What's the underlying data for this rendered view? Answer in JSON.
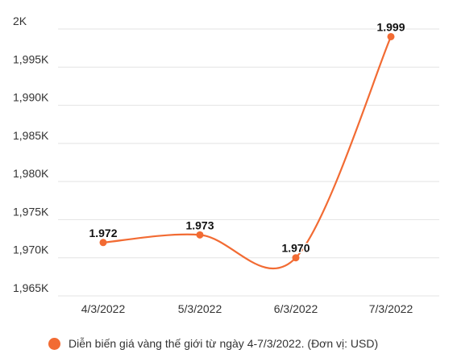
{
  "chart_data": {
    "type": "line",
    "categories": [
      "4/3/2022",
      "5/3/2022",
      "6/3/2022",
      "7/3/2022"
    ],
    "series": [
      {
        "name": "Diễn biến giá vàng thế giới từ ngày 4-7/3/2022. (Đơn vị: USD)",
        "values": [
          1972,
          1973,
          1970,
          1999
        ],
        "data_labels": [
          "1.972",
          "1.973",
          "1.970",
          "1.999"
        ],
        "color": "#f26b33"
      }
    ],
    "y_ticks": [
      {
        "value": 1965,
        "label": "1,965K"
      },
      {
        "value": 1970,
        "label": "1,970K"
      },
      {
        "value": 1975,
        "label": "1,975K"
      },
      {
        "value": 1980,
        "label": "1,980K"
      },
      {
        "value": 1985,
        "label": "1,985K"
      },
      {
        "value": 1990,
        "label": "1,990K"
      },
      {
        "value": 1995,
        "label": "1,995K"
      },
      {
        "value": 2000,
        "label": "2K"
      }
    ],
    "ylim": [
      1965,
      2000
    ],
    "grid": true,
    "legend_position": "bottom",
    "title": "",
    "xlabel": "",
    "ylabel": ""
  }
}
